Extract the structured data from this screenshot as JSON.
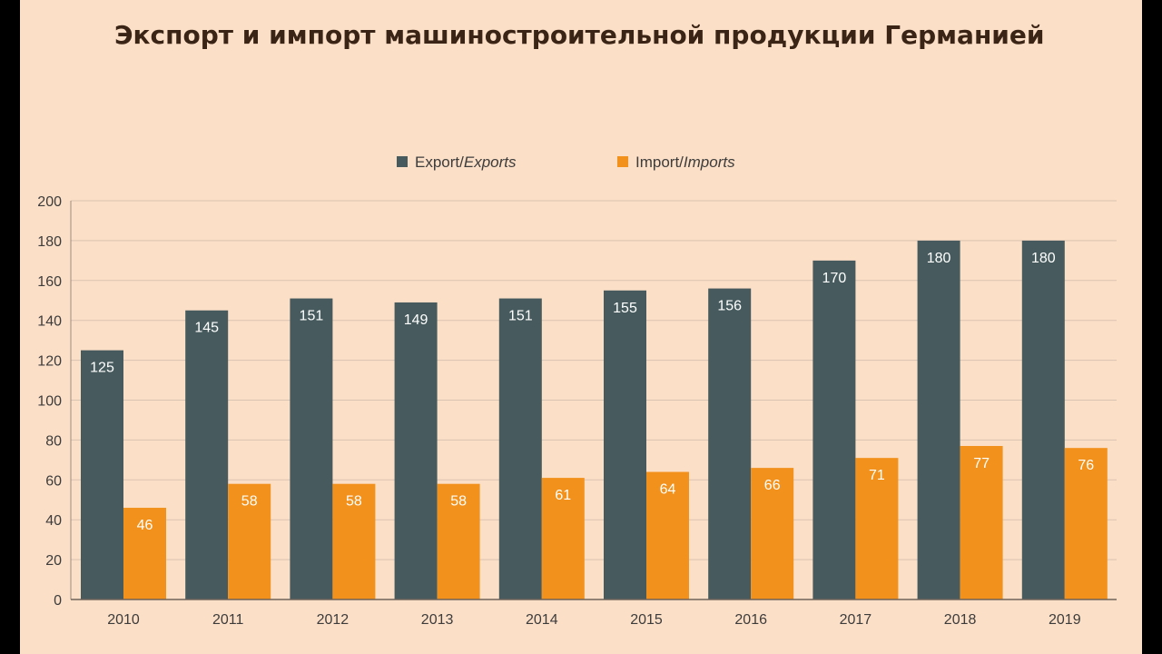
{
  "title": "Экспорт и импорт машиностроительной продукции Германией",
  "legend": {
    "export_prefix": "Export/",
    "export_italic": "Exports",
    "import_prefix": "Import/",
    "import_italic": "Imports"
  },
  "colors": {
    "background": "#fcdfc7",
    "export": "#475b5e",
    "import": "#f2911b",
    "grid": "#d9c3b1",
    "title": "#3a2415"
  },
  "chart_data": {
    "type": "bar",
    "categories": [
      "2010",
      "2011",
      "2012",
      "2013",
      "2014",
      "2015",
      "2016",
      "2017",
      "2018",
      "2019"
    ],
    "series": [
      {
        "name": "Export/Exports",
        "values": [
          125,
          145,
          151,
          149,
          151,
          155,
          156,
          170,
          180,
          180
        ]
      },
      {
        "name": "Import/Imports",
        "values": [
          46,
          58,
          58,
          58,
          61,
          64,
          66,
          71,
          77,
          76
        ]
      }
    ],
    "ylim": [
      0,
      200
    ],
    "yticks": [
      0,
      20,
      40,
      60,
      80,
      100,
      120,
      140,
      160,
      180,
      200
    ],
    "grid": true,
    "legend_position": "top-center",
    "data_labels": true
  }
}
